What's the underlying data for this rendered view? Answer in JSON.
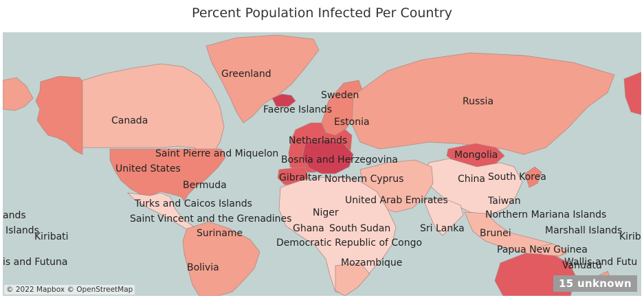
{
  "title": "Percent Population Infected Per Country",
  "attribution": "© 2022 Mapbox © OpenStreetMap",
  "unknown_badge": "15 unknown",
  "colors": {
    "water": "#c3d3d1",
    "lowest": "#fad4cb",
    "low": "#f7b8a8",
    "medium": "#f3a08e",
    "high": "#ee8576",
    "very_high": "#e15b60",
    "highest": "#cf3f54"
  },
  "labels": [
    {
      "id": "greenland",
      "text": "Greenland"
    },
    {
      "id": "sweden",
      "text": "Sweden"
    },
    {
      "id": "faeroe",
      "text": "Faeroe Islands"
    },
    {
      "id": "russia",
      "text": "Russia"
    },
    {
      "id": "canada",
      "text": "Canada"
    },
    {
      "id": "estonia",
      "text": "Estonia"
    },
    {
      "id": "netherlands",
      "text": "Netherlands"
    },
    {
      "id": "saint-pierre",
      "text": "Saint Pierre and Miquelon"
    },
    {
      "id": "mongolia",
      "text": "Mongolia"
    },
    {
      "id": "bosnia",
      "text": "Bosnia and Herzegovina"
    },
    {
      "id": "united-states",
      "text": "United States"
    },
    {
      "id": "gibraltar",
      "text": "Gibraltar"
    },
    {
      "id": "northern-cyprus",
      "text": "Northern Cyprus"
    },
    {
      "id": "china",
      "text": "China"
    },
    {
      "id": "south-korea",
      "text": "South Korea"
    },
    {
      "id": "bermuda",
      "text": "Bermuda"
    },
    {
      "id": "uae",
      "text": "United Arab Emirates"
    },
    {
      "id": "taiwan",
      "text": "Taiwan"
    },
    {
      "id": "turks",
      "text": "Turks and Caicos Islands"
    },
    {
      "id": "niger",
      "text": "Niger"
    },
    {
      "id": "n-mariana",
      "text": "Northern Mariana Islands"
    },
    {
      "id": "ands",
      "text": "ands"
    },
    {
      "id": "saint-vincent",
      "text": "Saint Vincent and the Grenadines"
    },
    {
      "id": "ghana",
      "text": "Ghana"
    },
    {
      "id": "south-sudan",
      "text": "South Sudan"
    },
    {
      "id": "sri-lanka",
      "text": "Sri Lanka"
    },
    {
      "id": "marshall",
      "text": "Marshall Islands"
    },
    {
      "id": "islands-left",
      "text": "Islands"
    },
    {
      "id": "kiribati-left",
      "text": "Kiribati"
    },
    {
      "id": "suriname",
      "text": "Suriname"
    },
    {
      "id": "brunei",
      "text": "Brunei"
    },
    {
      "id": "kiribati-right",
      "text": "Kiribat"
    },
    {
      "id": "drc",
      "text": "Democratic Republic of Congo"
    },
    {
      "id": "papua",
      "text": "Papua New Guinea"
    },
    {
      "id": "wallis-left",
      "text": "is and Futuna"
    },
    {
      "id": "mozambique",
      "text": "Mozambique"
    },
    {
      "id": "vanuatu",
      "text": "Vanuatu"
    },
    {
      "id": "wallis-right",
      "text": "Wallis and Futu"
    },
    {
      "id": "bolivia",
      "text": "Bolivia"
    }
  ]
}
